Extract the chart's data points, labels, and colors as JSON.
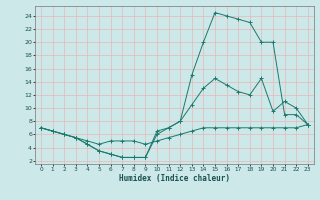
{
  "xlabel": "Humidex (Indice chaleur)",
  "bg_color": "#cce8e8",
  "grid_color": "#e8b8b8",
  "line_color": "#1a7a6e",
  "xlim": [
    -0.5,
    23.5
  ],
  "ylim": [
    1.5,
    25.5
  ],
  "xticks": [
    0,
    1,
    2,
    3,
    4,
    5,
    6,
    7,
    8,
    9,
    10,
    11,
    12,
    13,
    14,
    15,
    16,
    17,
    18,
    19,
    20,
    21,
    22,
    23
  ],
  "yticks": [
    2,
    4,
    6,
    8,
    10,
    12,
    14,
    16,
    18,
    20,
    22,
    24
  ],
  "line1_x": [
    0,
    1,
    2,
    3,
    4,
    5,
    6,
    7,
    8,
    9,
    10,
    11,
    12,
    13,
    14,
    15,
    16,
    17,
    18,
    19,
    20,
    21,
    22,
    23
  ],
  "line1_y": [
    7,
    6.5,
    6,
    5.5,
    5,
    4.5,
    5,
    5,
    5,
    4.5,
    5,
    5.5,
    6,
    6.5,
    7,
    7,
    7,
    7,
    7,
    7,
    7,
    7,
    7,
    7.5
  ],
  "line2_x": [
    0,
    1,
    2,
    3,
    4,
    5,
    6,
    7,
    8,
    9,
    10,
    11,
    12,
    13,
    14,
    15,
    16,
    17,
    18,
    19,
    20,
    21,
    22,
    23
  ],
  "line2_y": [
    7,
    6.5,
    6,
    5.5,
    4.5,
    3.5,
    3,
    2.5,
    2.5,
    2.5,
    6,
    7,
    8,
    15,
    20,
    24.5,
    24,
    23.5,
    23,
    20,
    20,
    9,
    9,
    7.5
  ],
  "line3_x": [
    0,
    1,
    2,
    3,
    4,
    5,
    6,
    7,
    8,
    9,
    10,
    11,
    12,
    13,
    14,
    15,
    16,
    17,
    18,
    19,
    20,
    21,
    22,
    23
  ],
  "line3_y": [
    7,
    6.5,
    6,
    5.5,
    4.5,
    3.5,
    3,
    2.5,
    2.5,
    2.5,
    6.5,
    7,
    8,
    10.5,
    13,
    14.5,
    13.5,
    12.5,
    12,
    14.5,
    9.5,
    11,
    10,
    7.5
  ]
}
